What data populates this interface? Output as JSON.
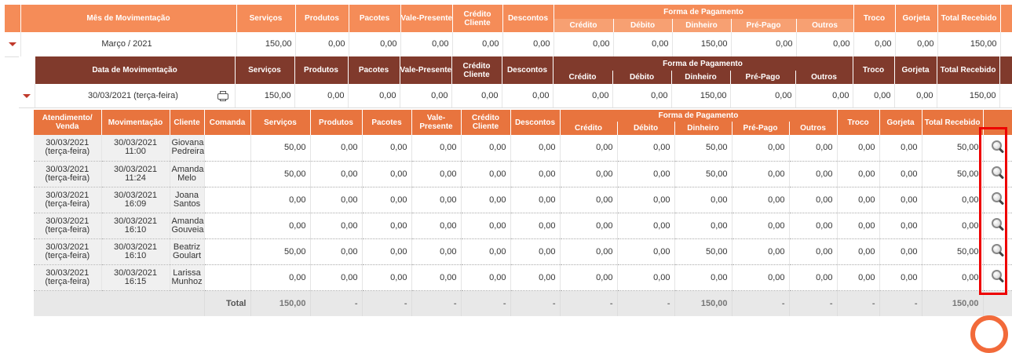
{
  "level1": {
    "headers": {
      "mes": "Mês de Movimentação",
      "servicos": "Serviços",
      "produtos": "Produtos",
      "pacotes": "Pacotes",
      "vale": "Vale-Presente",
      "credito_cliente": "Crédito Cliente",
      "descontos": "Descontos",
      "forma": "Forma de Pagamento",
      "credito": "Crédito",
      "debito": "Débito",
      "dinheiro": "Dinheiro",
      "prepago": "Pré-Pago",
      "outros": "Outros",
      "troco": "Troco",
      "gorjeta": "Gorjeta",
      "total": "Total Recebido"
    },
    "row": {
      "label": "Março / 2021",
      "values": [
        "150,00",
        "0,00",
        "0,00",
        "0,00",
        "0,00",
        "0,00",
        "0,00",
        "0,00",
        "150,00",
        "0,00",
        "0,00",
        "0,00",
        "0,00",
        "150,00"
      ]
    }
  },
  "level2": {
    "headers": {
      "data": "Data de Movimentação",
      "servicos": "Serviços",
      "produtos": "Produtos",
      "pacotes": "Pacotes",
      "vale": "Vale-Presente",
      "credito_cliente": "Crédito Cliente",
      "descontos": "Descontos",
      "forma": "Forma de Pagamento",
      "credito": "Crédito",
      "debito": "Débito",
      "dinheiro": "Dinheiro",
      "prepago": "Pré-Pago",
      "outros": "Outros",
      "troco": "Troco",
      "gorjeta": "Gorjeta",
      "total": "Total Recebido"
    },
    "row": {
      "label": "30/03/2021 (terça-feira)",
      "values": [
        "150,00",
        "0,00",
        "0,00",
        "0,00",
        "0,00",
        "0,00",
        "0,00",
        "0,00",
        "150,00",
        "0,00",
        "0,00",
        "0,00",
        "0,00",
        "150,00"
      ]
    }
  },
  "level3": {
    "headers": {
      "atendimento": "Atendimento/ Venda",
      "movimentacao": "Movimentação",
      "cliente": "Cliente",
      "comanda": "Comanda",
      "servicos": "Serviços",
      "produtos": "Produtos",
      "pacotes": "Pacotes",
      "vale": "Vale-Presente",
      "credito_cliente": "Crédito Cliente",
      "descontos": "Descontos",
      "forma": "Forma de Pagamento",
      "credito": "Crédito",
      "debito": "Débito",
      "dinheiro": "Dinheiro",
      "prepago": "Pré-Pago",
      "outros": "Outros",
      "troco": "Troco",
      "gorjeta": "Gorjeta",
      "total": "Total Recebido"
    },
    "rows": [
      {
        "atend1": "30/03/2021",
        "atend2": "(terça-feira)",
        "mov1": "30/03/2021",
        "mov2": "11:00",
        "cli1": "Giovana",
        "cli2": "Pedreira",
        "comanda": "",
        "values": [
          "50,00",
          "0,00",
          "0,00",
          "0,00",
          "0,00",
          "0,00",
          "0,00",
          "0,00",
          "50,00",
          "0,00",
          "0,00",
          "0,00",
          "0,00",
          "50,00"
        ]
      },
      {
        "atend1": "30/03/2021",
        "atend2": "(terça-feira)",
        "mov1": "30/03/2021",
        "mov2": "11:24",
        "cli1": "Amanda",
        "cli2": "Melo",
        "comanda": "",
        "values": [
          "50,00",
          "0,00",
          "0,00",
          "0,00",
          "0,00",
          "0,00",
          "0,00",
          "0,00",
          "50,00",
          "0,00",
          "0,00",
          "0,00",
          "0,00",
          "50,00"
        ]
      },
      {
        "atend1": "30/03/2021",
        "atend2": "(terça-feira)",
        "mov1": "30/03/2021",
        "mov2": "16:09",
        "cli1": "Joana",
        "cli2": "Santos",
        "comanda": "",
        "values": [
          "0,00",
          "0,00",
          "0,00",
          "0,00",
          "0,00",
          "0,00",
          "0,00",
          "0,00",
          "0,00",
          "0,00",
          "0,00",
          "0,00",
          "0,00",
          "0,00"
        ]
      },
      {
        "atend1": "30/03/2021",
        "atend2": "(terça-feira)",
        "mov1": "30/03/2021",
        "mov2": "16:10",
        "cli1": "Amanda",
        "cli2": "Gouveia",
        "comanda": "",
        "values": [
          "0,00",
          "0,00",
          "0,00",
          "0,00",
          "0,00",
          "0,00",
          "0,00",
          "0,00",
          "0,00",
          "0,00",
          "0,00",
          "0,00",
          "0,00",
          "0,00"
        ]
      },
      {
        "atend1": "30/03/2021",
        "atend2": "(terça-feira)",
        "mov1": "30/03/2021",
        "mov2": "16:10",
        "cli1": "Beatriz",
        "cli2": "Goulart",
        "comanda": "",
        "values": [
          "50,00",
          "0,00",
          "0,00",
          "0,00",
          "0,00",
          "0,00",
          "0,00",
          "0,00",
          "50,00",
          "0,00",
          "0,00",
          "0,00",
          "0,00",
          "50,00"
        ]
      },
      {
        "atend1": "30/03/2021",
        "atend2": "(terça-feira)",
        "mov1": "30/03/2021",
        "mov2": "16:15",
        "cli1": "Larissa",
        "cli2": "Munhoz",
        "comanda": "",
        "values": [
          "0,00",
          "0,00",
          "0,00",
          "0,00",
          "0,00",
          "0,00",
          "0,00",
          "0,00",
          "0,00",
          "0,00",
          "0,00",
          "0,00",
          "0,00",
          "0,00"
        ]
      }
    ],
    "total": {
      "label": "Total",
      "values": [
        "150,00",
        "-",
        "-",
        "-",
        "-",
        "-",
        "-",
        "-",
        "150,00",
        "-",
        "-",
        "-",
        "-",
        "150,00"
      ]
    }
  },
  "icons": {
    "expand": "chevron-down-icon",
    "print": "printer-icon",
    "view": "magnifier-icon"
  },
  "colors": {
    "level1": "#f58c58",
    "level2": "#803a2c",
    "level3": "#e8743e",
    "highlight": "#ee0000"
  }
}
